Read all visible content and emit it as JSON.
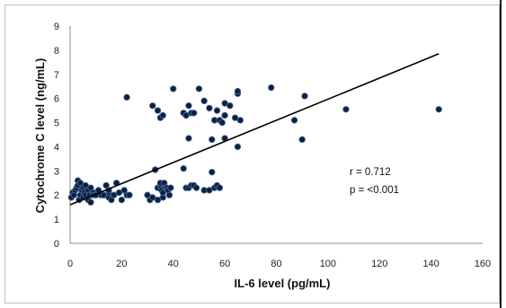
{
  "chart_data": {
    "type": "scatter",
    "xlabel": "IL-6 level (pg/mL)",
    "ylabel": "Cytochrome C level (ng/mL)",
    "xlim": [
      0,
      160
    ],
    "ylim": [
      0,
      9
    ],
    "xticks": [
      0,
      20,
      40,
      60,
      80,
      100,
      120,
      140,
      160
    ],
    "yticks": [
      0,
      1,
      2,
      3,
      4,
      5,
      6,
      7,
      8,
      9
    ],
    "grid": false,
    "legend": "none",
    "annotations": [
      "r = 0.712",
      "p = <0.001"
    ],
    "colors": {
      "point": "#0f1f3d",
      "line": "#000000"
    },
    "trendline": [
      [
        0,
        1.6
      ],
      [
        143,
        7.85
      ]
    ],
    "series": [
      {
        "x": [
          0.5,
          1,
          1.5,
          2,
          2.5,
          3,
          3,
          3.5,
          4,
          4,
          4.5,
          5,
          5,
          5.5,
          6,
          6,
          7,
          7,
          7.5,
          8,
          8,
          9,
          9,
          10,
          11,
          12,
          13,
          14,
          15,
          15,
          15,
          16,
          17,
          18,
          19,
          20,
          21,
          22,
          22,
          23,
          30,
          31,
          32,
          33,
          34,
          34,
          35,
          35,
          35.5,
          36,
          36,
          36.5,
          37,
          37.5,
          38,
          38.5,
          39,
          44,
          45,
          46,
          47,
          48,
          49,
          52,
          54,
          55,
          56,
          57,
          58,
          32,
          34,
          35,
          36,
          40,
          44,
          45,
          46,
          47,
          48,
          50,
          52,
          54,
          56,
          57,
          58,
          59,
          60,
          60,
          62,
          64,
          65,
          65,
          66,
          46,
          55,
          60,
          65,
          78,
          87,
          90,
          91,
          107,
          143
        ],
        "y": [
          1.9,
          2.1,
          2.0,
          2.2,
          2.3,
          2.4,
          2.6,
          1.8,
          2.5,
          2.0,
          2.2,
          1.9,
          2.3,
          2.1,
          2.4,
          2.0,
          2.2,
          1.8,
          2.0,
          2.3,
          1.7,
          2.1,
          2.0,
          2.0,
          2.2,
          2.0,
          2.0,
          2.4,
          1.9,
          2.1,
          2.2,
          1.8,
          2.0,
          2.5,
          2.1,
          1.8,
          2.2,
          2.0,
          6.05,
          2.0,
          2.0,
          1.8,
          1.9,
          3.05,
          2.3,
          1.8,
          2.4,
          2.5,
          2.2,
          1.9,
          2.1,
          2.5,
          2.3,
          2.3,
          2.2,
          2.0,
          2.3,
          3.1,
          2.3,
          2.3,
          2.4,
          2.4,
          2.3,
          2.2,
          2.2,
          2.95,
          2.3,
          2.4,
          2.3,
          5.7,
          5.5,
          5.2,
          5.3,
          6.4,
          5.4,
          5.3,
          5.7,
          5.4,
          5.4,
          6.4,
          5.9,
          5.6,
          5.1,
          5.5,
          5.1,
          5.0,
          5.3,
          5.8,
          5.7,
          5.2,
          6.2,
          6.3,
          5.1,
          4.35,
          4.3,
          4.35,
          4.0,
          6.45,
          5.1,
          4.3,
          6.1,
          5.55,
          5.55
        ]
      }
    ]
  }
}
